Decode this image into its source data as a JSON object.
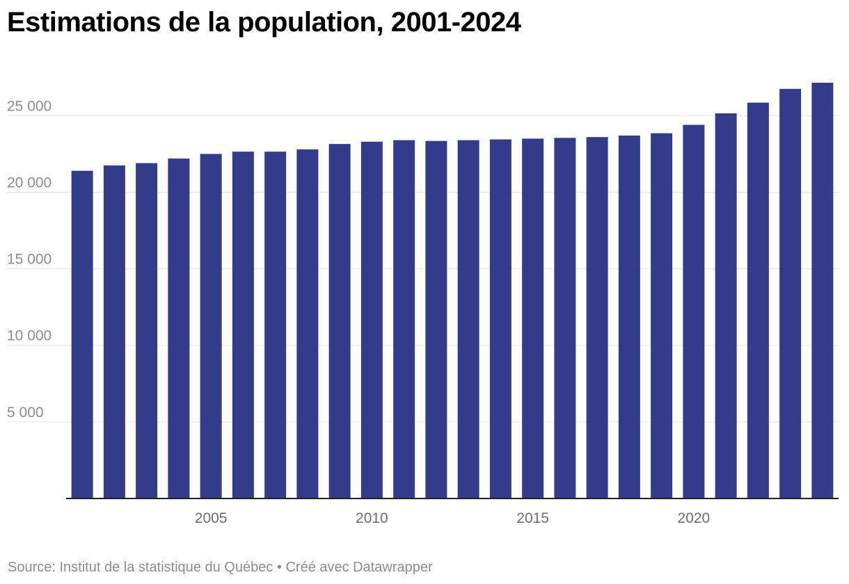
{
  "title": "Estimations de la population, 2001-2024",
  "footer": {
    "source": "Source: Institut de la statistique du Québec",
    "separator": " • ",
    "credit": "Créé avec Datawrapper"
  },
  "colors": {
    "bar": "#323c8a",
    "grid": "#e4e4e4",
    "axis": "#222222",
    "tick_text": "#8c8c8c"
  },
  "chart_data": {
    "type": "bar",
    "title": "Estimations de la population, 2001-2024",
    "xlabel": "",
    "ylabel": "",
    "categories": [
      2001,
      2002,
      2003,
      2004,
      2005,
      2006,
      2007,
      2008,
      2009,
      2010,
      2011,
      2012,
      2013,
      2014,
      2015,
      2016,
      2017,
      2018,
      2019,
      2020,
      2021,
      2022,
      2023,
      2024
    ],
    "values": [
      21400,
      21750,
      21900,
      22200,
      22500,
      22650,
      22650,
      22800,
      23150,
      23300,
      23400,
      23350,
      23400,
      23450,
      23500,
      23550,
      23600,
      23700,
      23850,
      24400,
      25150,
      25850,
      26750,
      27150
    ],
    "ylim": [
      0,
      27150
    ],
    "yticks": [
      5000,
      10000,
      15000,
      20000,
      25000
    ],
    "ytick_labels": [
      "5 000",
      "10 000",
      "15 000",
      "20 000",
      "25 000"
    ],
    "xticks": [
      2005,
      2010,
      2015,
      2020
    ],
    "xtick_labels": [
      "2005",
      "2010",
      "2015",
      "2020"
    ],
    "grid": true,
    "legend": "none"
  }
}
